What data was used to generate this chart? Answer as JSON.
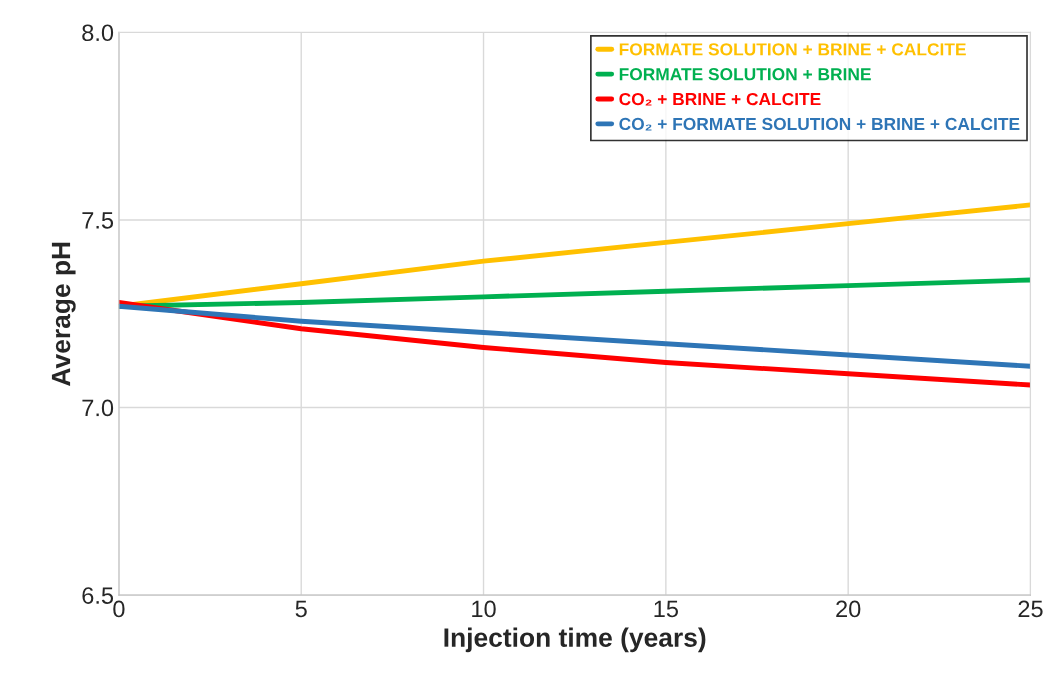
{
  "chart_data": {
    "type": "line",
    "xlabel": "Injection time (years)",
    "ylabel": "Average pH",
    "x": [
      0,
      5,
      10,
      15,
      20,
      25
    ],
    "series": [
      {
        "name": "FORMATE SOLUTION + BRINE + CALCITE",
        "color": "#ffc000",
        "values": [
          7.27,
          7.33,
          7.39,
          7.44,
          7.49,
          7.54
        ]
      },
      {
        "name": "FORMATE SOLUTION + BRINE",
        "color": "#00b050",
        "values": [
          7.27,
          7.28,
          7.295,
          7.31,
          7.325,
          7.34
        ]
      },
      {
        "name": "CO₂ + BRINE + CALCITE",
        "color": "#ff0000",
        "values": [
          7.28,
          7.21,
          7.16,
          7.12,
          7.09,
          7.06
        ]
      },
      {
        "name": "CO₂ + FORMATE SOLUTION + BRINE + CALCITE",
        "color": "#2e75b6",
        "values": [
          7.27,
          7.23,
          7.2,
          7.17,
          7.14,
          7.11
        ]
      }
    ],
    "xlim": [
      0,
      25
    ],
    "xticks": [
      0,
      5,
      10,
      15,
      20,
      25
    ],
    "ylim": [
      6.5,
      8.0
    ],
    "yticks": [
      {
        "value": 6.5,
        "label": "6.5"
      },
      {
        "value": 7.0,
        "label": "7.0"
      },
      {
        "value": 7.5,
        "label": "7.5"
      },
      {
        "value": 8.0,
        "label": "8.0"
      }
    ],
    "grid": true,
    "legend": "top right",
    "line_style": "solid"
  }
}
